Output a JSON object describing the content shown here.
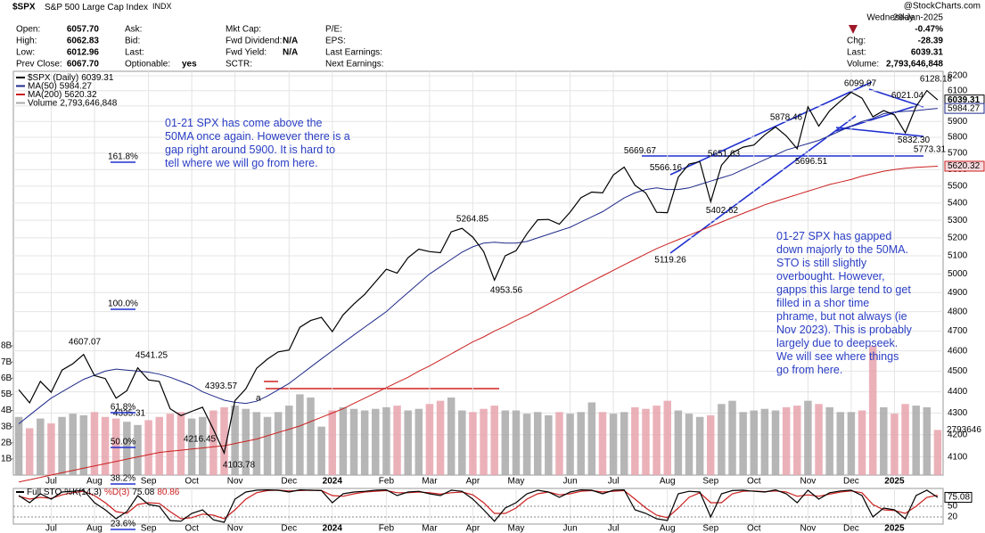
{
  "header": {
    "symbol": "$SPX",
    "name": "S&P 500 Large Cap Index",
    "exchange": "INDX",
    "source": "@StockCharts.com",
    "fields": [
      [
        {
          "label": "Open:",
          "value": "6057.70"
        },
        {
          "label": "High:",
          "value": "6062.83"
        },
        {
          "label": "Low:",
          "value": "6012.96"
        },
        {
          "label": "Prev Close:",
          "value": "6067.70"
        }
      ],
      [
        {
          "label": "Ask:"
        },
        {
          "label": "Bid:"
        },
        {
          "label": "Last:"
        },
        {
          "label": "Optionable:",
          "value": "yes"
        }
      ],
      [
        {
          "label": "Mkt Cap:"
        },
        {
          "label": "Fwd Dividend:",
          "value": "N/A"
        },
        {
          "label": "Fwd Yield:",
          "value": "N/A"
        },
        {
          "label": "SCTR:"
        }
      ],
      [
        {
          "label": "P/E:"
        },
        {
          "label": "EPS:"
        },
        {
          "label": "Last Earnings:"
        },
        {
          "label": "Next Earnings:"
        }
      ]
    ],
    "quote": {
      "day": "Wednesday",
      "date": "29-Jan-2025",
      "change_pct": "-0.47%",
      "rows": [
        {
          "label": "Chg:",
          "value": "-28.39"
        },
        {
          "label": "Last:",
          "value": "6039.31"
        },
        {
          "label": "Volume:",
          "value": "2,793,646,848"
        }
      ]
    }
  },
  "chart_data": [
    {
      "type": "line",
      "log_scale": true,
      "grid": true,
      "categories": [
        null,
        null,
        null,
        "Jul",
        null,
        null,
        null,
        "Aug",
        null,
        null,
        null,
        null,
        "Sep",
        null,
        null,
        null,
        "Oct",
        null,
        null,
        null,
        "Nov",
        null,
        null,
        null,
        null,
        "Dec",
        null,
        null,
        null,
        "2024",
        null,
        null,
        null,
        null,
        "Feb",
        null,
        null,
        null,
        "Mar",
        null,
        null,
        null,
        "Apr",
        null,
        null,
        null,
        "May",
        null,
        null,
        null,
        null,
        "Jun",
        null,
        null,
        null,
        "Jul",
        null,
        null,
        null,
        null,
        "Aug",
        null,
        null,
        null,
        "Sep",
        null,
        null,
        null,
        "Oct",
        null,
        null,
        null,
        null,
        "Nov",
        null,
        null,
        null,
        "Dec",
        null,
        null,
        null,
        "2025",
        null,
        null,
        null,
        null
      ],
      "series": [
        {
          "name": "$SPX (Daily)",
          "color": "#000000",
          "values": [
            4410,
            4348,
            4450,
            4398,
            4505,
            4536,
            4582,
            4478,
            4464,
            4370,
            4405,
            4516,
            4457,
            4450,
            4320,
            4288,
            4308,
            4327,
            4224,
            4117,
            4358,
            4415,
            4514,
            4559,
            4595,
            4604,
            4719,
            4754,
            4770,
            4697,
            4783,
            4840,
            4891,
            4958,
            5026,
            5005,
            5089,
            5137,
            5123,
            5117,
            5234,
            5254,
            5204,
            5123,
            4967,
            5100,
            5128,
            5223,
            5303,
            5305,
            5278,
            5347,
            5431,
            5465,
            5460,
            5567,
            5615,
            5505,
            5459,
            5346,
            5344,
            5554,
            5634,
            5648,
            5408,
            5626,
            5703,
            5738,
            5751,
            5815,
            5865,
            5808,
            5728,
            5995,
            5870,
            5969,
            6032,
            6090,
            6051,
            5930,
            5970,
            5942,
            5827,
            5997,
            6101,
            6039.31
          ]
        },
        {
          "name": "MA(50)",
          "color": "#1f2a8a",
          "values": [
            4250,
            4290,
            4330,
            4370,
            4400,
            4430,
            4460,
            4480,
            4500,
            4510,
            4505,
            4500,
            4495,
            4485,
            4470,
            4450,
            4430,
            4400,
            4380,
            4360,
            4350,
            4345,
            4355,
            4380,
            4410,
            4440,
            4480,
            4520,
            4560,
            4600,
            4640,
            4680,
            4720,
            4760,
            4800,
            4850,
            4900,
            4950,
            5000,
            5040,
            5080,
            5120,
            5150,
            5170,
            5175,
            5170,
            5170,
            5180,
            5200,
            5220,
            5240,
            5260,
            5290,
            5320,
            5350,
            5390,
            5430,
            5460,
            5480,
            5490,
            5480,
            5480,
            5490,
            5510,
            5530,
            5550,
            5570,
            5600,
            5630,
            5660,
            5690,
            5720,
            5740,
            5760,
            5780,
            5810,
            5840,
            5870,
            5900,
            5920,
            5950,
            5960,
            5965,
            5970,
            5978,
            5984.27
          ]
        },
        {
          "name": "MA(200)",
          "color": "#cc1f1f",
          "values": [
            3990,
            4000,
            4010,
            4020,
            4030,
            4040,
            4050,
            4060,
            4070,
            4080,
            4090,
            4100,
            4110,
            4120,
            4125,
            4130,
            4135,
            4140,
            4145,
            4150,
            4160,
            4170,
            4180,
            4195,
            4210,
            4225,
            4240,
            4260,
            4280,
            4300,
            4320,
            4345,
            4370,
            4395,
            4420,
            4445,
            4470,
            4500,
            4525,
            4555,
            4585,
            4615,
            4645,
            4670,
            4700,
            4725,
            4755,
            4780,
            4810,
            4840,
            4870,
            4900,
            4930,
            4960,
            4990,
            5020,
            5050,
            5080,
            5110,
            5140,
            5165,
            5190,
            5215,
            5240,
            5265,
            5290,
            5315,
            5340,
            5365,
            5390,
            5410,
            5430,
            5450,
            5470,
            5490,
            5510,
            5525,
            5540,
            5560,
            5575,
            5590,
            5600,
            5608,
            5613,
            5617,
            5620.32
          ]
        },
        {
          "name": "Volume",
          "type": "bar",
          "axis": "y2",
          "color": "#a9a9a9",
          "down_color": "#e8a3ad",
          "legend_label": "2,793,646,848",
          "axis_label": "2793646",
          "values": [
            3600000000.0,
            2900000000.0,
            3500000000.0,
            3200000000.0,
            3600000000.0,
            3800000000.0,
            3700000000.0,
            3900000000.0,
            3600000000.0,
            3500000000.0,
            3300000000.0,
            3100000000.0,
            3400000000.0,
            3600000000.0,
            3800000000.0,
            3900000000.0,
            3500000000.0,
            3600000000.0,
            4000000000.0,
            4200000000.0,
            4300000000.0,
            4100000000.0,
            3900000000.0,
            3600000000.0,
            3900000000.0,
            4300000000.0,
            5000000000.0,
            4800000000.0,
            3000000000.0,
            4000000000.0,
            4200000000.0,
            4100000000.0,
            4000000000.0,
            4100000000.0,
            4200000000.0,
            4300000000.0,
            4000000000.0,
            4100000000.0,
            4400000000.0,
            4600000000.0,
            4800000000.0,
            4000000000.0,
            3900000000.0,
            4100000000.0,
            4300000000.0,
            4000000000.0,
            4000000000.0,
            3800000000.0,
            3900000000.0,
            3700000000.0,
            3900000000.0,
            3800000000.0,
            3900000000.0,
            4500000000.0,
            3900000000.0,
            3800000000.0,
            3900000000.0,
            4200000000.0,
            4100000000.0,
            4300000000.0,
            4600000000.0,
            4000000000.0,
            3800000000.0,
            3600000000.0,
            3700000000.0,
            4400000000.0,
            4600000000.0,
            3900000000.0,
            4000000000.0,
            4100000000.0,
            4000000000.0,
            4200000000.0,
            4300000000.0,
            4600000000.0,
            4400000000.0,
            4200000000.0,
            3900000000.0,
            3900000000.0,
            4000000000.0,
            8000000000.0,
            4200000000.0,
            3800000000.0,
            4400000000.0,
            4300000000.0,
            4200000000.0,
            2793646848
          ]
        }
      ],
      "ylim": [
        4020,
        6230
      ],
      "yticks": [
        4100,
        4200,
        4300,
        4400,
        4500,
        4600,
        4700,
        4800,
        4900,
        5000,
        5100,
        5200,
        5300,
        5400,
        5500,
        5600,
        5700,
        5800,
        5900,
        6000,
        6100,
        6200
      ],
      "y2lim": [
        0,
        25000000000.0
      ],
      "y2ticks": [
        {
          "value": 1000000000.0,
          "label": "1B"
        },
        {
          "value": 2000000000.0,
          "label": "2B"
        },
        {
          "value": 3000000000.0,
          "label": "3B"
        },
        {
          "value": 4000000000.0,
          "label": "4B"
        },
        {
          "value": 5000000000.0,
          "label": "5B"
        },
        {
          "value": 6000000000.0,
          "label": "6B"
        },
        {
          "value": 7000000000.0,
          "label": "7B"
        },
        {
          "value": 8000000000.0,
          "label": "8B"
        }
      ],
      "price_labels": [
        4607.07,
        4541.25,
        4393.57,
        4335.31,
        4216.45,
        4103.78,
        5264.85,
        4953.56,
        5669.67,
        5566.16,
        5651.63,
        5119.26,
        5402.62,
        5878.46,
        6099.97,
        6021.04,
        6128.18,
        {
          "value": 5832.3,
          "label": "5832.30"
        },
        5773.31,
        5696.51
      ],
      "fib_labels": [
        "161.8%",
        "100.0%",
        "61.8%",
        "50.0%",
        "38.2%",
        "23.6%"
      ],
      "annotations": [
        "01-21 SPX has come above the 50MA once again. However there is a gap right around 5900. It is hard to tell where we will go from here.",
        "01-27 SPX has gapped down majorly to the 50MA. STO is still slightly overbought. However, gapps this large tend to get filled in a shor time phrame, but not always (ie Nov 2023). This is probably largely due to deepseek. We will see where things go from here.",
        "a"
      ]
    },
    {
      "type": "line",
      "title": "Full STO",
      "ylim": [
        0,
        100
      ],
      "yticks": [
        20,
        50
      ],
      "series": [
        {
          "name": "%K(14,3)",
          "color": "#000000",
          "values": [
            80,
            60,
            85,
            70,
            90,
            92,
            95,
            60,
            40,
            15,
            35,
            80,
            55,
            50,
            10,
            8,
            30,
            40,
            12,
            5,
            70,
            90,
            95,
            96,
            95,
            90,
            96,
            95,
            94,
            60,
            85,
            90,
            92,
            95,
            96,
            80,
            90,
            92,
            85,
            80,
            95,
            92,
            70,
            40,
            8,
            45,
            60,
            85,
            95,
            90,
            75,
            90,
            96,
            95,
            85,
            95,
            96,
            40,
            30,
            15,
            10,
            85,
            92,
            90,
            20,
            85,
            94,
            95,
            92,
            90,
            96,
            85,
            60,
            95,
            70,
            88,
            93,
            95,
            80,
            20,
            45,
            40,
            15,
            80,
            95,
            75.08
          ]
        },
        {
          "name": "%D(3)",
          "color": "#cc1f1f",
          "values": [
            78,
            70,
            75,
            72,
            82,
            88,
            92,
            80,
            60,
            35,
            30,
            55,
            60,
            58,
            35,
            15,
            18,
            28,
            25,
            15,
            40,
            70,
            88,
            94,
            95,
            93,
            94,
            95,
            94,
            80,
            78,
            85,
            90,
            92,
            94,
            88,
            88,
            90,
            88,
            84,
            88,
            90,
            82,
            60,
            30,
            30,
            45,
            70,
            85,
            90,
            82,
            85,
            92,
            94,
            90,
            92,
            94,
            70,
            45,
            25,
            18,
            45,
            75,
            88,
            60,
            60,
            85,
            92,
            93,
            91,
            93,
            90,
            78,
            82,
            78,
            84,
            90,
            93,
            88,
            55,
            40,
            38,
            30,
            50,
            75,
            80.86
          ]
        }
      ]
    }
  ]
}
